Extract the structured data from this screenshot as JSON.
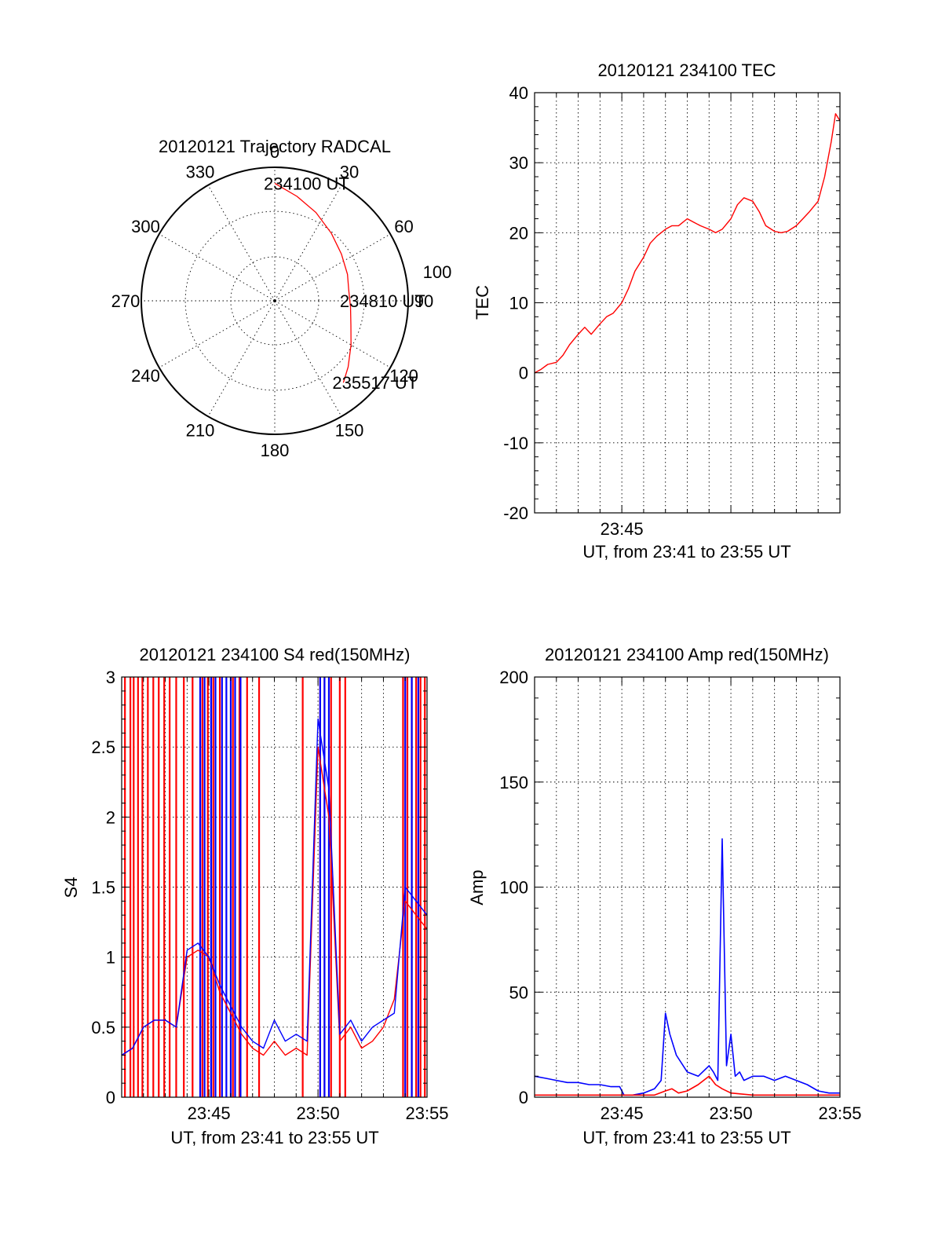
{
  "colors": {
    "red": "#ff0000",
    "blue": "#0000ff",
    "axis": "#000000"
  },
  "chart_data": [
    {
      "type": "polar",
      "title": "20120121 Trajectory RADCAL",
      "angle_labels": [
        "0",
        "30",
        "60",
        "90",
        "120",
        "150",
        "180",
        "210",
        "240",
        "270",
        "300",
        "330"
      ],
      "extra_label": "100",
      "radius_circles": [
        0.33,
        0.67,
        1.0
      ],
      "trajectory": {
        "color": "#ff0000",
        "points": [
          {
            "az": 0,
            "r": 0.88
          },
          {
            "az": 12,
            "r": 0.8
          },
          {
            "az": 25,
            "r": 0.73
          },
          {
            "az": 40,
            "r": 0.66
          },
          {
            "az": 55,
            "r": 0.61
          },
          {
            "az": 70,
            "r": 0.58
          },
          {
            "az": 82,
            "r": 0.56
          },
          {
            "az": 95,
            "r": 0.57
          },
          {
            "az": 108,
            "r": 0.6
          },
          {
            "az": 120,
            "r": 0.66
          },
          {
            "az": 132,
            "r": 0.74
          },
          {
            "az": 140,
            "r": 0.8
          }
        ]
      },
      "annotations": [
        {
          "text": "234100 UT",
          "az": 0,
          "r": 0.88
        },
        {
          "text": "234810 UT",
          "az": 90,
          "r": 0.57
        },
        {
          "text": "235517 UT",
          "az": 140,
          "r": 0.8
        }
      ]
    },
    {
      "type": "line",
      "title": "20120121 234100 TEC",
      "xlabel": "UT, from 23:41 to 23:55 UT",
      "ylabel": "TEC",
      "xlim": [
        0,
        14
      ],
      "ylim": [
        -20,
        40
      ],
      "yticks": [
        -20,
        -10,
        0,
        10,
        20,
        30,
        40
      ],
      "xtick_labels": [
        {
          "x": 4,
          "label": "23:45"
        }
      ],
      "grid": true,
      "series": [
        {
          "color": "#ff0000",
          "x": [
            0,
            0.3,
            0.6,
            1.0,
            1.3,
            1.6,
            2.0,
            2.3,
            2.6,
            3.0,
            3.3,
            3.6,
            4.0,
            4.3,
            4.6,
            5.0,
            5.3,
            5.6,
            6.0,
            6.3,
            6.6,
            7.0,
            7.3,
            7.6,
            8.0,
            8.3,
            8.6,
            9.0,
            9.3,
            9.6,
            10.0,
            10.3,
            10.6,
            11.0,
            11.3,
            11.6,
            12.0,
            12.3,
            12.6,
            13.0,
            13.3,
            13.6,
            13.8,
            14.0
          ],
          "values": [
            0,
            0.5,
            1.2,
            1.5,
            2.5,
            4.0,
            5.5,
            6.5,
            5.5,
            7.0,
            8.0,
            8.5,
            10.0,
            12.0,
            14.5,
            16.5,
            18.5,
            19.5,
            20.5,
            21.0,
            21.0,
            22.0,
            21.5,
            21.0,
            20.5,
            20.0,
            20.5,
            22.0,
            24.0,
            25.0,
            24.5,
            23.0,
            21.0,
            20.2,
            20.0,
            20.2,
            21.0,
            22.0,
            23.0,
            24.5,
            28.0,
            33.0,
            37.0,
            36.0
          ]
        }
      ]
    },
    {
      "type": "line",
      "title": "20120121 234100 S4 red(150MHz)",
      "xlabel": "UT, from 23:41 to 23:55 UT",
      "ylabel": "S4",
      "xlim": [
        0,
        14
      ],
      "ylim": [
        0,
        3
      ],
      "yticks": [
        0,
        0.5,
        1,
        1.5,
        2,
        2.5,
        3
      ],
      "ytick_labels": [
        "0",
        "0.5",
        "1",
        "1.5",
        "2",
        "2.5",
        "3"
      ],
      "xtick_labels": [
        {
          "x": 4,
          "label": "23:45"
        },
        {
          "x": 9,
          "label": "23:50"
        },
        {
          "x": 14,
          "label": "23:55"
        }
      ],
      "grid": true,
      "series": [
        {
          "color": "#ff0000",
          "x": [
            0,
            0.5,
            1.0,
            1.5,
            2.0,
            2.5,
            3.0,
            3.5,
            4.0,
            4.5,
            5.0,
            5.5,
            6.0,
            6.5,
            7.0,
            7.5,
            8.0,
            8.5,
            9.0,
            9.5,
            10.0,
            10.5,
            11.0,
            11.5,
            12.0,
            12.5,
            13.0,
            13.5,
            14.0
          ],
          "values": [
            0.3,
            0.35,
            0.5,
            0.55,
            0.55,
            0.5,
            1.0,
            1.05,
            1.0,
            0.75,
            0.6,
            0.45,
            0.35,
            0.3,
            0.4,
            0.3,
            0.35,
            0.3,
            2.5,
            2.0,
            0.4,
            0.5,
            0.35,
            0.4,
            0.5,
            0.7,
            1.4,
            1.3,
            1.2
          ]
        },
        {
          "color": "#0000ff",
          "x": [
            0,
            0.5,
            1.0,
            1.5,
            2.0,
            2.5,
            3.0,
            3.5,
            4.0,
            4.5,
            5.0,
            5.5,
            6.0,
            6.5,
            7.0,
            7.5,
            8.0,
            8.5,
            9.0,
            9.5,
            10.0,
            10.5,
            11.0,
            11.5,
            12.0,
            12.5,
            13.0,
            13.5,
            14.0
          ],
          "values": [
            0.3,
            0.35,
            0.5,
            0.55,
            0.55,
            0.5,
            1.05,
            1.1,
            1.0,
            0.8,
            0.65,
            0.5,
            0.4,
            0.35,
            0.55,
            0.4,
            0.45,
            0.4,
            2.7,
            2.2,
            0.45,
            0.55,
            0.4,
            0.5,
            0.55,
            0.6,
            1.5,
            1.4,
            1.3
          ]
        }
      ],
      "spikes": [
        {
          "color": "#ff0000",
          "x": [
            0.15,
            0.4,
            0.55,
            0.75,
            0.95,
            1.2,
            1.45,
            1.7,
            1.95,
            2.2,
            2.5,
            2.85,
            3.25,
            3.7,
            3.95,
            4.2,
            4.5,
            5.1,
            5.4,
            5.75,
            6.3,
            8.3,
            9.1,
            9.3,
            9.6,
            10.0,
            10.25,
            12.9,
            13.1,
            13.3,
            13.5,
            13.7,
            13.9
          ]
        },
        {
          "color": "#0000ff",
          "x": [
            3.6,
            3.8,
            4.1,
            4.3,
            4.6,
            4.8,
            5.0,
            5.2,
            5.45,
            9.1,
            9.3,
            9.5,
            13.0,
            13.3,
            13.6
          ]
        }
      ]
    },
    {
      "type": "line",
      "title": "20120121 234100 Amp red(150MHz)",
      "xlabel": "UT, from 23:41 to 23:55 UT",
      "ylabel": "Amp",
      "xlim": [
        0,
        14
      ],
      "ylim": [
        0,
        200
      ],
      "yticks": [
        0,
        50,
        100,
        150,
        200
      ],
      "xtick_labels": [
        {
          "x": 4,
          "label": "23:45"
        },
        {
          "x": 9,
          "label": "23:50"
        },
        {
          "x": 14,
          "label": "23:55"
        }
      ],
      "grid": true,
      "series": [
        {
          "color": "#0000ff",
          "x": [
            0,
            0.5,
            1.0,
            1.5,
            2.0,
            2.5,
            3.0,
            3.5,
            3.9,
            4.1,
            4.5,
            5.0,
            5.5,
            5.8,
            6.0,
            6.2,
            6.5,
            7.0,
            7.5,
            8.0,
            8.2,
            8.4,
            8.6,
            8.8,
            9.0,
            9.2,
            9.4,
            9.6,
            10.0,
            10.5,
            11.0,
            11.5,
            12.0,
            12.5,
            13.0,
            13.5,
            14.0
          ],
          "values": [
            10,
            9,
            8,
            7,
            7,
            6,
            6,
            5,
            5,
            1,
            1,
            2,
            4,
            8,
            40,
            30,
            20,
            12,
            10,
            15,
            12,
            8,
            123,
            15,
            30,
            10,
            12,
            8,
            10,
            10,
            8,
            10,
            8,
            6,
            3,
            2,
            2
          ]
        },
        {
          "color": "#ff0000",
          "x": [
            0,
            1.0,
            2.0,
            3.0,
            4.0,
            5.0,
            5.5,
            6.0,
            6.3,
            6.6,
            7.0,
            7.5,
            8.0,
            8.3,
            8.6,
            9.0,
            10.0,
            11.0,
            12.0,
            13.0,
            14.0
          ],
          "values": [
            1,
            1,
            1,
            1,
            1,
            1,
            1,
            3,
            4,
            2,
            3,
            6,
            10,
            6,
            4,
            2,
            1,
            1,
            1,
            1,
            1
          ]
        }
      ]
    }
  ]
}
